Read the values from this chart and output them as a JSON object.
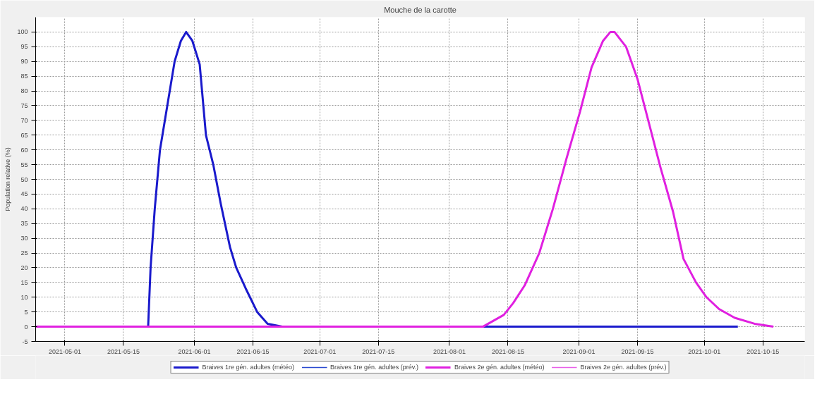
{
  "chart_data": {
    "type": "line",
    "title": "Mouche de la carotte",
    "ylabel": "Population relative (%)",
    "xlim": [
      "2021-04-24",
      "2021-10-25"
    ],
    "ylim": [
      -5,
      105
    ],
    "xticks": [
      "2021-05-01",
      "2021-05-15",
      "2021-06-01",
      "2021-06-15",
      "2021-07-01",
      "2021-07-15",
      "2021-08-01",
      "2021-08-15",
      "2021-09-01",
      "2021-09-15",
      "2021-10-01",
      "2021-10-15"
    ],
    "yticks": [
      -5,
      0,
      5,
      10,
      15,
      20,
      25,
      30,
      35,
      40,
      45,
      50,
      55,
      60,
      65,
      70,
      75,
      80,
      85,
      90,
      95,
      100
    ],
    "grid": true,
    "legend": "bottom",
    "line_style": "solid",
    "marker": "none",
    "series": [
      {
        "name": "Braives 1re gén. adultes (météo)",
        "color": "#1a1acc",
        "x": [
          "2021-04-24",
          "2021-05-20T22:00",
          "2021-05-21T12:00",
          "2021-05-22T12:00",
          "2021-05-23T18:00",
          "2021-05-25T12:00",
          "2021-05-27T06:00",
          "2021-05-28T18:00",
          "2021-05-30",
          "2021-05-31T12:00",
          "2021-06-02T06:00",
          "2021-06-03T18:00",
          "2021-06-05T12:00",
          "2021-06-07T06:00",
          "2021-06-09T12:00",
          "2021-06-11",
          "2021-06-13T06:00",
          "2021-06-16",
          "2021-06-18T12:00",
          "2021-06-22",
          "2021-06-27",
          "2021-10-09"
        ],
        "values": [
          0,
          0,
          20,
          40,
          60,
          75,
          90,
          97,
          100,
          97,
          89,
          65,
          55,
          42,
          27,
          20,
          13,
          5,
          1,
          0,
          0,
          0
        ]
      },
      {
        "name": "Braives 1re gén. adultes (prév.)",
        "color": "#2a4ad0"
      },
      {
        "name": "Braives 2e gén. adultes (météo)",
        "color": "#e020e0",
        "x": [
          "2021-04-24",
          "2021-08-09",
          "2021-08-14",
          "2021-08-16T06:00",
          "2021-08-19",
          "2021-08-22T12:00",
          "2021-08-25T18:00",
          "2021-08-29",
          "2021-09-01T06:00",
          "2021-09-04",
          "2021-09-06T18:00",
          "2021-09-08T12:00",
          "2021-09-09T12:00",
          "2021-09-12T06:00",
          "2021-09-15",
          "2021-09-17T18:00",
          "2021-09-20T12:00",
          "2021-09-23T12:00",
          "2021-09-26",
          "2021-09-29",
          "2021-10-01T12:00",
          "2021-10-04T12:00",
          "2021-10-08T06:00",
          "2021-10-13",
          "2021-10-17T12:00"
        ],
        "values": [
          0,
          0,
          4,
          8,
          14,
          25,
          40,
          57,
          73,
          88,
          97,
          100,
          100,
          95,
          84,
          69,
          54,
          39,
          23,
          15,
          10,
          6,
          3,
          1,
          0
        ]
      },
      {
        "name": "Braives 2e gén. adultes (prév.)",
        "color": "#e860e8"
      }
    ]
  }
}
